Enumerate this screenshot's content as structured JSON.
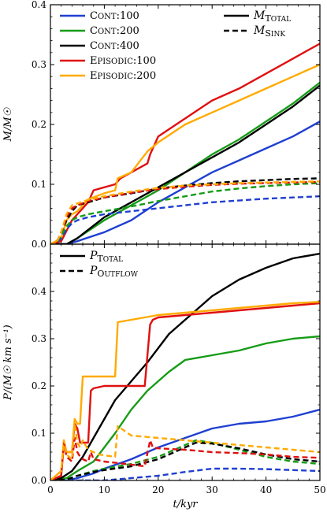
{
  "chart_data": [
    {
      "type": "line",
      "panel": "top",
      "ylabel": "M/M☉",
      "xlabel": "",
      "xlim": [
        0,
        50
      ],
      "ylim": [
        0,
        0.4
      ],
      "yticks": [
        "0.0",
        "0.1",
        "0.2",
        "0.3",
        "0.4"
      ],
      "colors": {
        "Cont:100": "#1f3fd1",
        "Cont:200": "#169c16",
        "Cont:400": "#000000",
        "Episodic:100": "#e01010",
        "Episodic:200": "#ffaa00"
      },
      "legend_runs": [
        "Cont:100",
        "Cont:200",
        "Cont:400",
        "Episodic:100",
        "Episodic:200"
      ],
      "legend_styles": [
        {
          "label": "M_TOTAL",
          "dash": "solid"
        },
        {
          "label": "M_SINK",
          "dash": "dashed"
        }
      ],
      "series": [
        {
          "name": "Cont:100",
          "kind": "total",
          "x": [
            0,
            3,
            5,
            10,
            15,
            20,
            25,
            30,
            35,
            40,
            45,
            50
          ],
          "y": [
            0,
            0,
            0.005,
            0.02,
            0.04,
            0.07,
            0.095,
            0.12,
            0.14,
            0.16,
            0.18,
            0.205
          ]
        },
        {
          "name": "Cont:200",
          "kind": "total",
          "x": [
            0,
            3,
            5,
            10,
            15,
            20,
            25,
            30,
            35,
            40,
            45,
            50
          ],
          "y": [
            0,
            0,
            0.01,
            0.04,
            0.065,
            0.09,
            0.12,
            0.15,
            0.175,
            0.205,
            0.235,
            0.27
          ]
        },
        {
          "name": "Cont:400",
          "kind": "total",
          "x": [
            0,
            3,
            5,
            10,
            15,
            20,
            25,
            30,
            35,
            40,
            45,
            50
          ],
          "y": [
            0,
            0,
            0.01,
            0.045,
            0.07,
            0.095,
            0.12,
            0.145,
            0.17,
            0.2,
            0.23,
            0.265
          ]
        },
        {
          "name": "Episodic:100",
          "kind": "total",
          "x": [
            0,
            2,
            4,
            5,
            6,
            7,
            8,
            12,
            13,
            18,
            18.5,
            20,
            25,
            30,
            35,
            40,
            45,
            50
          ],
          "y": [
            0,
            0.005,
            0.04,
            0.05,
            0.06,
            0.07,
            0.09,
            0.1,
            0.11,
            0.135,
            0.15,
            0.18,
            0.21,
            0.24,
            0.26,
            0.285,
            0.31,
            0.335
          ]
        },
        {
          "name": "Episodic:200",
          "kind": "total",
          "x": [
            0,
            2,
            3,
            4,
            5,
            6,
            7,
            10,
            12,
            12.5,
            15,
            18,
            20,
            25,
            30,
            35,
            40,
            45,
            50
          ],
          "y": [
            0,
            0.01,
            0.04,
            0.05,
            0.055,
            0.065,
            0.075,
            0.085,
            0.09,
            0.11,
            0.12,
            0.155,
            0.17,
            0.2,
            0.22,
            0.24,
            0.26,
            0.28,
            0.3
          ]
        },
        {
          "name": "Cont:100",
          "kind": "sink",
          "x": [
            0,
            1,
            2,
            3,
            4,
            5,
            7,
            10,
            15,
            20,
            25,
            30,
            35,
            40,
            45,
            50
          ],
          "y": [
            0,
            0,
            0.01,
            0.025,
            0.035,
            0.04,
            0.045,
            0.05,
            0.055,
            0.06,
            0.065,
            0.07,
            0.073,
            0.076,
            0.078,
            0.08
          ]
        },
        {
          "name": "Cont:200",
          "kind": "sink",
          "x": [
            0,
            1,
            2,
            3,
            4,
            5,
            7,
            10,
            15,
            20,
            25,
            30,
            35,
            40,
            45,
            50
          ],
          "y": [
            0,
            0,
            0.015,
            0.03,
            0.04,
            0.045,
            0.05,
            0.055,
            0.063,
            0.072,
            0.08,
            0.088,
            0.093,
            0.097,
            0.1,
            0.102
          ]
        },
        {
          "name": "Cont:400",
          "kind": "sink",
          "x": [
            0,
            1,
            2,
            3,
            4,
            5,
            7,
            10,
            15,
            20,
            25,
            30,
            35,
            40,
            45,
            50
          ],
          "y": [
            0,
            0,
            0.02,
            0.04,
            0.055,
            0.065,
            0.07,
            0.078,
            0.085,
            0.093,
            0.098,
            0.102,
            0.105,
            0.107,
            0.109,
            0.11
          ]
        },
        {
          "name": "Episodic:100",
          "kind": "sink",
          "x": [
            0,
            1,
            2,
            3,
            4,
            5,
            7,
            10,
            15,
            20,
            25,
            30,
            35,
            40,
            45,
            50
          ],
          "y": [
            0,
            0,
            0.02,
            0.045,
            0.06,
            0.065,
            0.072,
            0.078,
            0.086,
            0.092,
            0.096,
            0.099,
            0.101,
            0.102,
            0.103,
            0.104
          ]
        },
        {
          "name": "Episodic:200",
          "kind": "sink",
          "x": [
            0,
            1,
            2,
            3,
            4,
            5,
            7,
            10,
            15,
            20,
            25,
            30,
            35,
            40,
            45,
            50
          ],
          "y": [
            0,
            0,
            0.02,
            0.05,
            0.065,
            0.068,
            0.074,
            0.08,
            0.088,
            0.094,
            0.098,
            0.1,
            0.102,
            0.103,
            0.104,
            0.105
          ]
        }
      ]
    },
    {
      "type": "line",
      "panel": "bottom",
      "ylabel": "P/(M☉ km s⁻¹)",
      "xlabel": "t/kyr",
      "xlim": [
        0,
        50
      ],
      "ylim": [
        0,
        0.5
      ],
      "xticks": [
        "0",
        "10",
        "20",
        "30",
        "40",
        "50"
      ],
      "yticks": [
        "0.0",
        "0.1",
        "0.2",
        "0.3",
        "0.4"
      ],
      "legend_styles": [
        {
          "label": "P_TOTAL",
          "dash": "solid"
        },
        {
          "label": "P_OUTFLOW",
          "dash": "dashed"
        }
      ],
      "series": [
        {
          "name": "Cont:100",
          "kind": "total",
          "x": [
            0,
            3,
            5,
            8,
            10,
            15,
            20,
            25,
            30,
            35,
            40,
            45,
            50
          ],
          "y": [
            0,
            0,
            0.005,
            0.015,
            0.025,
            0.045,
            0.07,
            0.09,
            0.11,
            0.12,
            0.125,
            0.135,
            0.15
          ]
        },
        {
          "name": "Cont:200",
          "kind": "total",
          "x": [
            0,
            3,
            5,
            8,
            10,
            12,
            15,
            18,
            20,
            22,
            25,
            30,
            35,
            40,
            45,
            50
          ],
          "y": [
            0,
            0.005,
            0.02,
            0.04,
            0.07,
            0.1,
            0.15,
            0.19,
            0.21,
            0.23,
            0.255,
            0.265,
            0.275,
            0.29,
            0.3,
            0.305
          ]
        },
        {
          "name": "Cont:400",
          "kind": "total",
          "x": [
            0,
            2,
            4,
            6,
            8,
            10,
            12,
            15,
            18,
            20,
            22,
            25,
            28,
            30,
            35,
            40,
            45,
            50
          ],
          "y": [
            0,
            0.005,
            0.02,
            0.05,
            0.09,
            0.13,
            0.17,
            0.21,
            0.25,
            0.28,
            0.31,
            0.34,
            0.37,
            0.39,
            0.425,
            0.45,
            0.47,
            0.48
          ]
        },
        {
          "name": "Episodic:100",
          "kind": "total",
          "x": [
            0,
            2,
            2.5,
            3,
            3.5,
            4,
            4.5,
            5,
            5.5,
            6,
            7,
            7.5,
            8,
            10,
            14,
            17.5,
            18.5,
            19,
            20,
            25,
            30,
            35,
            40,
            45,
            50
          ],
          "y": [
            0,
            0.01,
            0.08,
            0.06,
            0.06,
            0.06,
            0.12,
            0.11,
            0.08,
            0.08,
            0.08,
            0.19,
            0.195,
            0.2,
            0.2,
            0.2,
            0.33,
            0.34,
            0.345,
            0.35,
            0.355,
            0.36,
            0.365,
            0.37,
            0.375
          ]
        },
        {
          "name": "Episodic:200",
          "kind": "total",
          "x": [
            0,
            2,
            2.5,
            3,
            3.5,
            4,
            4.5,
            5,
            5.5,
            6,
            7,
            9,
            12,
            12.5,
            15,
            20,
            25,
            30,
            35,
            40,
            45,
            50
          ],
          "y": [
            0,
            0.02,
            0.085,
            0.06,
            0.06,
            0.06,
            0.13,
            0.12,
            0.12,
            0.22,
            0.22,
            0.22,
            0.22,
            0.335,
            0.34,
            0.35,
            0.355,
            0.36,
            0.365,
            0.37,
            0.375,
            0.378
          ]
        },
        {
          "name": "Cont:100",
          "kind": "outflow",
          "x": [
            0,
            10,
            12,
            15,
            20,
            25,
            30,
            35,
            40,
            45,
            50
          ],
          "y": [
            0,
            0,
            0.002,
            0.005,
            0.01,
            0.018,
            0.025,
            0.025,
            0.024,
            0.022,
            0.02
          ]
        },
        {
          "name": "Cont:200",
          "kind": "outflow",
          "x": [
            0,
            3,
            5,
            8,
            10,
            15,
            20,
            25,
            27,
            30,
            35,
            40,
            45,
            50
          ],
          "y": [
            0,
            0.002,
            0.01,
            0.02,
            0.025,
            0.035,
            0.05,
            0.075,
            0.085,
            0.08,
            0.065,
            0.05,
            0.04,
            0.035
          ]
        },
        {
          "name": "Cont:400",
          "kind": "outflow",
          "x": [
            0,
            3,
            5,
            8,
            10,
            15,
            20,
            25,
            27,
            30,
            35,
            40,
            45,
            50
          ],
          "y": [
            0,
            0.002,
            0.01,
            0.018,
            0.022,
            0.03,
            0.045,
            0.07,
            0.08,
            0.078,
            0.068,
            0.055,
            0.045,
            0.04
          ]
        },
        {
          "name": "Episodic:100",
          "kind": "outflow",
          "x": [
            0,
            2,
            2.5,
            3,
            3.5,
            4,
            4.5,
            5,
            5.5,
            6,
            7,
            7.5,
            8,
            10,
            14,
            17.5,
            18.5,
            19,
            20,
            25,
            30,
            35,
            40,
            45,
            50
          ],
          "y": [
            0,
            0.01,
            0.08,
            0.05,
            0.045,
            0.04,
            0.09,
            0.06,
            0.05,
            0.045,
            0.04,
            0.06,
            0.045,
            0.04,
            0.035,
            0.03,
            0.085,
            0.07,
            0.068,
            0.065,
            0.06,
            0.058,
            0.055,
            0.05,
            0.048
          ]
        },
        {
          "name": "Episodic:200",
          "kind": "outflow",
          "x": [
            0,
            2,
            2.5,
            3,
            3.5,
            4,
            4.5,
            5,
            5.5,
            6,
            7,
            9,
            12,
            12.5,
            15,
            20,
            25,
            30,
            35,
            40,
            45,
            50
          ],
          "y": [
            0,
            0.02,
            0.085,
            0.055,
            0.05,
            0.045,
            0.12,
            0.08,
            0.07,
            0.085,
            0.065,
            0.055,
            0.05,
            0.115,
            0.095,
            0.09,
            0.085,
            0.08,
            0.075,
            0.07,
            0.065,
            0.06
          ]
        }
      ]
    }
  ]
}
